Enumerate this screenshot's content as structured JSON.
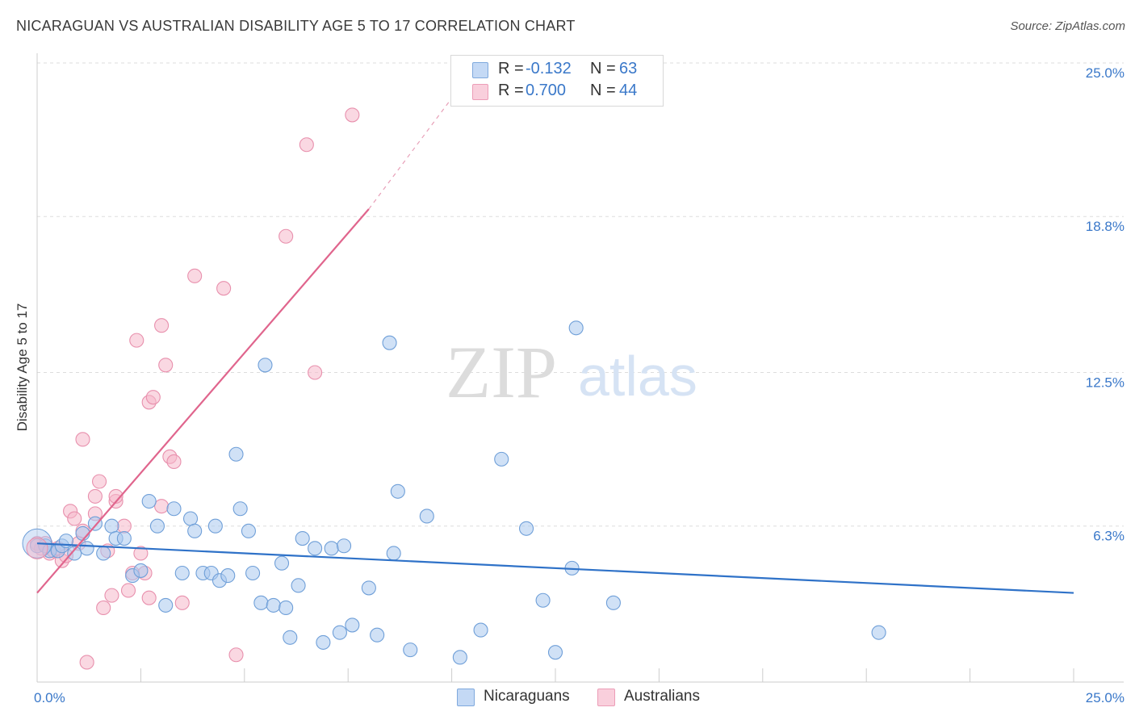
{
  "title": "NICARAGUAN VS AUSTRALIAN DISABILITY AGE 5 TO 17 CORRELATION CHART",
  "source": "Source: ZipAtlas.com",
  "watermark": {
    "zip": "ZIP",
    "atlas": "atlas"
  },
  "legend": {
    "rows": [
      {
        "r_label": "R =",
        "r_value": "-0.132",
        "n_label": "N =",
        "n_value": "63"
      },
      {
        "r_label": "R =",
        "r_value": "0.700",
        "n_label": "N =",
        "n_value": "44"
      }
    ]
  },
  "bottom_legend": [
    "Nicaraguans",
    "Australians"
  ],
  "colors": {
    "blue_fill": "#aac8ef",
    "blue_stroke": "#6f9fd8",
    "blue_line": "#2f72c8",
    "pink_fill": "#f6b8cb",
    "pink_stroke": "#e890ad",
    "pink_line": "#e0658d",
    "tick_label": "#3a78c9",
    "grid": "#dddddd"
  },
  "chart_data": {
    "type": "scatter",
    "title": "NICARAGUAN VS AUSTRALIAN DISABILITY AGE 5 TO 17 CORRELATION CHART",
    "xlabel": "",
    "ylabel": "Disability Age 5 to 17",
    "xlim": [
      0,
      25
    ],
    "ylim": [
      0,
      25
    ],
    "x_tick_labels": [
      "0.0%",
      "25.0%"
    ],
    "y_ticks": [
      6.3,
      12.5,
      18.8,
      25.0
    ],
    "y_tick_labels": [
      "6.3%",
      "12.5%",
      "18.8%",
      "25.0%"
    ],
    "grid": "horizontal dashed",
    "legend_position": "top-center",
    "series": [
      {
        "name": "Nicaraguans",
        "color": "#aac8ef",
        "r": -0.132,
        "n": 63,
        "points": [
          [
            0.0,
            5.5
          ],
          [
            0.2,
            5.5
          ],
          [
            0.3,
            5.3
          ],
          [
            0.5,
            5.3
          ],
          [
            0.6,
            5.5
          ],
          [
            0.7,
            5.7
          ],
          [
            0.9,
            5.2
          ],
          [
            1.1,
            6.0
          ],
          [
            1.2,
            5.4
          ],
          [
            1.4,
            6.4
          ],
          [
            1.6,
            5.2
          ],
          [
            1.8,
            6.3
          ],
          [
            1.9,
            5.8
          ],
          [
            2.1,
            5.8
          ],
          [
            2.3,
            4.3
          ],
          [
            2.5,
            4.5
          ],
          [
            2.7,
            7.3
          ],
          [
            2.9,
            6.3
          ],
          [
            3.1,
            3.1
          ],
          [
            3.3,
            7.0
          ],
          [
            3.5,
            4.4
          ],
          [
            3.7,
            6.6
          ],
          [
            3.8,
            6.1
          ],
          [
            4.0,
            4.4
          ],
          [
            4.2,
            4.4
          ],
          [
            4.3,
            6.3
          ],
          [
            4.4,
            4.1
          ],
          [
            4.6,
            4.3
          ],
          [
            4.8,
            9.2
          ],
          [
            4.9,
            7.0
          ],
          [
            5.1,
            6.1
          ],
          [
            5.2,
            4.4
          ],
          [
            5.4,
            3.2
          ],
          [
            5.5,
            12.8
          ],
          [
            5.7,
            3.1
          ],
          [
            5.9,
            4.8
          ],
          [
            6.0,
            3.0
          ],
          [
            6.1,
            1.8
          ],
          [
            6.3,
            3.9
          ],
          [
            6.4,
            5.8
          ],
          [
            6.7,
            5.4
          ],
          [
            6.9,
            1.6
          ],
          [
            7.1,
            5.4
          ],
          [
            7.3,
            2.0
          ],
          [
            7.4,
            5.5
          ],
          [
            7.6,
            2.3
          ],
          [
            8.0,
            3.8
          ],
          [
            8.2,
            1.9
          ],
          [
            8.5,
            13.7
          ],
          [
            8.6,
            5.2
          ],
          [
            8.7,
            7.7
          ],
          [
            9.0,
            1.3
          ],
          [
            9.4,
            6.7
          ],
          [
            10.2,
            1.0
          ],
          [
            10.7,
            2.1
          ],
          [
            11.2,
            9.0
          ],
          [
            11.8,
            6.2
          ],
          [
            12.2,
            3.3
          ],
          [
            12.5,
            1.2
          ],
          [
            12.9,
            4.6
          ],
          [
            13.0,
            14.3
          ],
          [
            13.9,
            3.2
          ],
          [
            20.3,
            2.0
          ]
        ]
      },
      {
        "name": "Australians",
        "color": "#f6b8cb",
        "r": 0.7,
        "n": 44,
        "points": [
          [
            0.0,
            5.6
          ],
          [
            0.1,
            5.4
          ],
          [
            0.2,
            5.6
          ],
          [
            0.3,
            5.2
          ],
          [
            0.4,
            5.3
          ],
          [
            0.5,
            5.4
          ],
          [
            0.6,
            4.9
          ],
          [
            0.7,
            5.1
          ],
          [
            0.8,
            6.9
          ],
          [
            0.9,
            6.6
          ],
          [
            1.0,
            5.6
          ],
          [
            1.1,
            9.8
          ],
          [
            1.1,
            6.1
          ],
          [
            1.2,
            0.8
          ],
          [
            1.4,
            6.8
          ],
          [
            1.4,
            7.5
          ],
          [
            1.5,
            8.1
          ],
          [
            1.6,
            3.0
          ],
          [
            1.7,
            5.3
          ],
          [
            1.8,
            3.5
          ],
          [
            1.9,
            7.3
          ],
          [
            1.9,
            7.5
          ],
          [
            2.1,
            6.3
          ],
          [
            2.2,
            3.7
          ],
          [
            2.3,
            4.4
          ],
          [
            2.4,
            13.8
          ],
          [
            2.5,
            5.2
          ],
          [
            2.6,
            4.4
          ],
          [
            2.7,
            3.4
          ],
          [
            2.7,
            11.3
          ],
          [
            2.8,
            11.5
          ],
          [
            3.0,
            7.1
          ],
          [
            3.0,
            14.4
          ],
          [
            3.1,
            12.8
          ],
          [
            3.2,
            9.1
          ],
          [
            3.3,
            8.9
          ],
          [
            3.5,
            3.2
          ],
          [
            3.8,
            16.4
          ],
          [
            4.5,
            15.9
          ],
          [
            4.8,
            1.1
          ],
          [
            6.0,
            18.0
          ],
          [
            6.5,
            21.7
          ],
          [
            6.7,
            12.5
          ],
          [
            7.6,
            22.9
          ]
        ]
      }
    ],
    "trendlines": [
      {
        "series": "Nicaraguans",
        "x": [
          0,
          25
        ],
        "y": [
          5.6,
          3.6
        ]
      },
      {
        "series": "Australians",
        "x": [
          0,
          8
        ],
        "y": [
          3.6,
          19.1
        ],
        "extended": {
          "x": [
            8,
            10.1
          ],
          "y": [
            19.1,
            23.8
          ]
        }
      }
    ]
  }
}
